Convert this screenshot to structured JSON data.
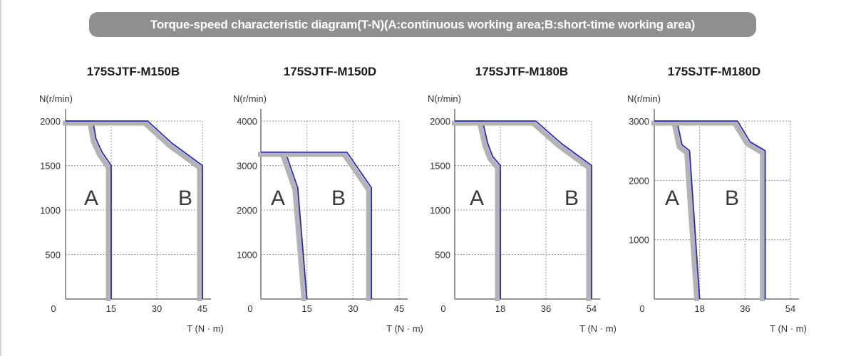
{
  "banner": {
    "text": "Torque-speed characteristic diagram(T-N)(A:continuous working area;B:short-time working area)"
  },
  "colors": {
    "banner_bg": "#8f8f8f",
    "curve_line": "#2b2bb5",
    "curve_shadow": "#b3b3b3",
    "grid": "#9a9a9a",
    "axis": "#555555"
  },
  "chart_data": [
    {
      "type": "line",
      "title": "175SJTF-M150B",
      "ylabel": "N(r/min)",
      "xlabel": "T (N · m)",
      "xlim": [
        0,
        45
      ],
      "ylim": [
        0,
        2000
      ],
      "xticks": [
        0,
        15,
        30,
        45
      ],
      "yticks": [
        500,
        1000,
        1500,
        2000
      ],
      "region_labels": [
        "A",
        "B"
      ],
      "series": [
        {
          "x": [
            0,
            9,
            10,
            12,
            15,
            15
          ],
          "y": [
            2000,
            2000,
            1800,
            1650,
            1500,
            0
          ]
        },
        {
          "x": [
            0,
            27,
            35,
            45,
            45
          ],
          "y": [
            2000,
            2000,
            1750,
            1500,
            0
          ]
        }
      ]
    },
    {
      "type": "line",
      "title": "175SJTF-M150D",
      "ylabel": "N(r/min)",
      "xlabel": "T (N · m)",
      "xlim": [
        0,
        45
      ],
      "ylim": [
        0,
        4000
      ],
      "xticks": [
        0,
        15,
        30,
        45
      ],
      "yticks": [
        1000,
        2000,
        3000,
        4000
      ],
      "region_labels": [
        "A",
        "B"
      ],
      "series": [
        {
          "x": [
            0,
            8,
            12,
            15
          ],
          "y": [
            3300,
            3300,
            2500,
            0
          ]
        },
        {
          "x": [
            0,
            28,
            36,
            36
          ],
          "y": [
            3300,
            3300,
            2500,
            0
          ]
        }
      ]
    },
    {
      "type": "line",
      "title": "175SJTF-M180B",
      "ylabel": "N(r/min)",
      "xlabel": "T (N · m)",
      "xlim": [
        0,
        54
      ],
      "ylim": [
        0,
        2000
      ],
      "xticks": [
        0,
        18,
        36,
        54
      ],
      "yticks": [
        500,
        1000,
        1500,
        2000
      ],
      "region_labels": [
        "A",
        "B"
      ],
      "series": [
        {
          "x": [
            0,
            11,
            13,
            15,
            18,
            18
          ],
          "y": [
            2000,
            2000,
            1750,
            1600,
            1500,
            0
          ]
        },
        {
          "x": [
            0,
            32,
            42,
            54,
            54
          ],
          "y": [
            2000,
            2000,
            1750,
            1500,
            0
          ]
        }
      ]
    },
    {
      "type": "line",
      "title": "175SJTF-M180D",
      "ylabel": "N(r/min)",
      "xlabel": "T (N · m)",
      "xlim": [
        0,
        54
      ],
      "ylim": [
        0,
        3000
      ],
      "xticks": [
        0,
        18,
        36,
        54
      ],
      "yticks": [
        1000,
        2000,
        3000
      ],
      "region_labels": [
        "A",
        "B"
      ],
      "series": [
        {
          "x": [
            0,
            9,
            11,
            14,
            18
          ],
          "y": [
            3000,
            3000,
            2600,
            2500,
            0
          ]
        },
        {
          "x": [
            0,
            33,
            38,
            44,
            44
          ],
          "y": [
            3000,
            3000,
            2650,
            2500,
            0
          ]
        }
      ]
    }
  ]
}
